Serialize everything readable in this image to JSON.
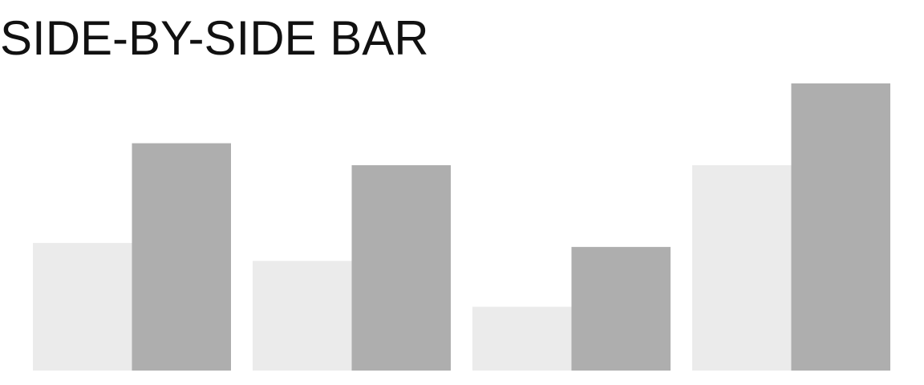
{
  "title": "SIDE-BY-SIDE BAR",
  "colors": {
    "background": "#ffffff",
    "series_light": "#ebebeb",
    "series_dark": "#aeaeae",
    "title": "#111111"
  },
  "chart_data": {
    "type": "bar",
    "title": "SIDE-BY-SIDE BAR",
    "categories": [
      "",
      "",
      "",
      ""
    ],
    "series": [
      {
        "values": [
          32,
          27.5,
          16,
          51.5
        ],
        "color": "#ebebeb"
      },
      {
        "values": [
          57,
          51.5,
          31,
          72
        ],
        "color": "#aeaeae"
      }
    ],
    "xlabel": "",
    "ylabel": "",
    "ylim": [
      0,
      72
    ],
    "grid": false,
    "legend": "none"
  }
}
